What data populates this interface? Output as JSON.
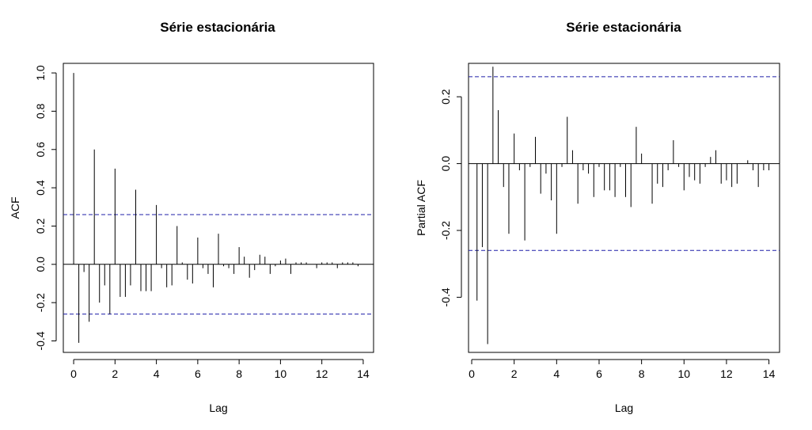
{
  "chart_data": [
    {
      "type": "bar",
      "title": "Série estacionária",
      "xlabel": "Lag",
      "ylabel": "ACF",
      "xlim": [
        -0.5,
        14.5
      ],
      "ylim": [
        -0.46,
        1.05
      ],
      "x_ticks": [
        0,
        2,
        4,
        6,
        8,
        10,
        12,
        14
      ],
      "y_ticks": [
        -0.4,
        -0.2,
        0.0,
        0.2,
        0.4,
        0.6,
        0.8,
        1.0
      ],
      "x_tick_labels": [
        "0",
        "2",
        "4",
        "6",
        "8",
        "10",
        "12",
        "14"
      ],
      "y_tick_labels": [
        "-0.4",
        "-0.2",
        "0.0",
        "0.2",
        "0.4",
        "0.6",
        "0.8",
        "1.0"
      ],
      "confidence_bound": 0.26,
      "conf_color": "#1f1fa8",
      "x": [
        0,
        0.25,
        0.5,
        0.75,
        1,
        1.25,
        1.5,
        1.75,
        2,
        2.25,
        2.5,
        2.75,
        3,
        3.25,
        3.5,
        3.75,
        4,
        4.25,
        4.5,
        4.75,
        5,
        5.25,
        5.5,
        5.75,
        6,
        6.25,
        6.5,
        6.75,
        7,
        7.25,
        7.5,
        7.75,
        8,
        8.25,
        8.5,
        8.75,
        9,
        9.25,
        9.5,
        9.75,
        10,
        10.25,
        10.5,
        10.75,
        11,
        11.25,
        11.5,
        11.75,
        12,
        12.25,
        12.5,
        12.75,
        13,
        13.25,
        13.5,
        13.75
      ],
      "values": [
        1.0,
        -0.41,
        -0.04,
        -0.3,
        0.6,
        -0.2,
        -0.11,
        -0.26,
        0.5,
        -0.17,
        -0.17,
        -0.11,
        0.39,
        -0.14,
        -0.14,
        -0.14,
        0.31,
        -0.02,
        -0.12,
        -0.11,
        0.2,
        0.01,
        -0.08,
        -0.1,
        0.14,
        -0.02,
        -0.05,
        -0.12,
        0.16,
        -0.01,
        -0.02,
        -0.05,
        0.09,
        0.04,
        -0.07,
        -0.03,
        0.05,
        0.04,
        -0.05,
        -0.01,
        0.02,
        0.03,
        -0.05,
        0.01,
        0.01,
        0.01,
        0.0,
        -0.02,
        0.01,
        0.01,
        0.01,
        -0.02,
        0.01,
        0.01,
        0.01,
        -0.01
      ]
    },
    {
      "type": "bar",
      "title": "Série estacionária",
      "xlabel": "Lag",
      "ylabel": "Partial ACF",
      "xlim": [
        -0.15,
        14.5
      ],
      "ylim": [
        -0.565,
        0.3
      ],
      "x_ticks": [
        0,
        2,
        4,
        6,
        8,
        10,
        12,
        14
      ],
      "y_ticks": [
        -0.4,
        -0.2,
        0.0,
        0.2
      ],
      "x_tick_labels": [
        "0",
        "2",
        "4",
        "6",
        "8",
        "10",
        "12",
        "14"
      ],
      "y_tick_labels": [
        "-0.4",
        "-0.2",
        "0.0",
        "0.2"
      ],
      "confidence_bound": 0.26,
      "conf_color": "#1f1fa8",
      "x": [
        0.25,
        0.5,
        0.75,
        1,
        1.25,
        1.5,
        1.75,
        2,
        2.25,
        2.5,
        2.75,
        3,
        3.25,
        3.5,
        3.75,
        4,
        4.25,
        4.5,
        4.75,
        5,
        5.25,
        5.5,
        5.75,
        6,
        6.25,
        6.5,
        6.75,
        7,
        7.25,
        7.5,
        7.75,
        8,
        8.25,
        8.5,
        8.75,
        9,
        9.25,
        9.5,
        9.75,
        10,
        10.25,
        10.5,
        10.75,
        11,
        11.25,
        11.5,
        11.75,
        12,
        12.25,
        12.5,
        12.75,
        13,
        13.25,
        13.5,
        13.75,
        14
      ],
      "values": [
        -0.41,
        -0.25,
        -0.54,
        0.29,
        0.16,
        -0.07,
        -0.21,
        0.09,
        -0.02,
        -0.23,
        -0.01,
        0.08,
        -0.09,
        -0.03,
        -0.11,
        -0.21,
        -0.01,
        0.14,
        0.04,
        -0.12,
        -0.02,
        -0.03,
        -0.1,
        -0.01,
        -0.08,
        -0.08,
        -0.1,
        -0.01,
        -0.1,
        -0.13,
        0.11,
        0.03,
        0.0,
        -0.12,
        -0.06,
        -0.07,
        -0.02,
        0.07,
        -0.01,
        -0.08,
        -0.04,
        -0.05,
        -0.06,
        -0.01,
        0.02,
        0.04,
        -0.06,
        -0.05,
        -0.07,
        -0.06,
        0.0,
        0.01,
        -0.02,
        -0.07,
        -0.02,
        -0.02
      ]
    }
  ]
}
